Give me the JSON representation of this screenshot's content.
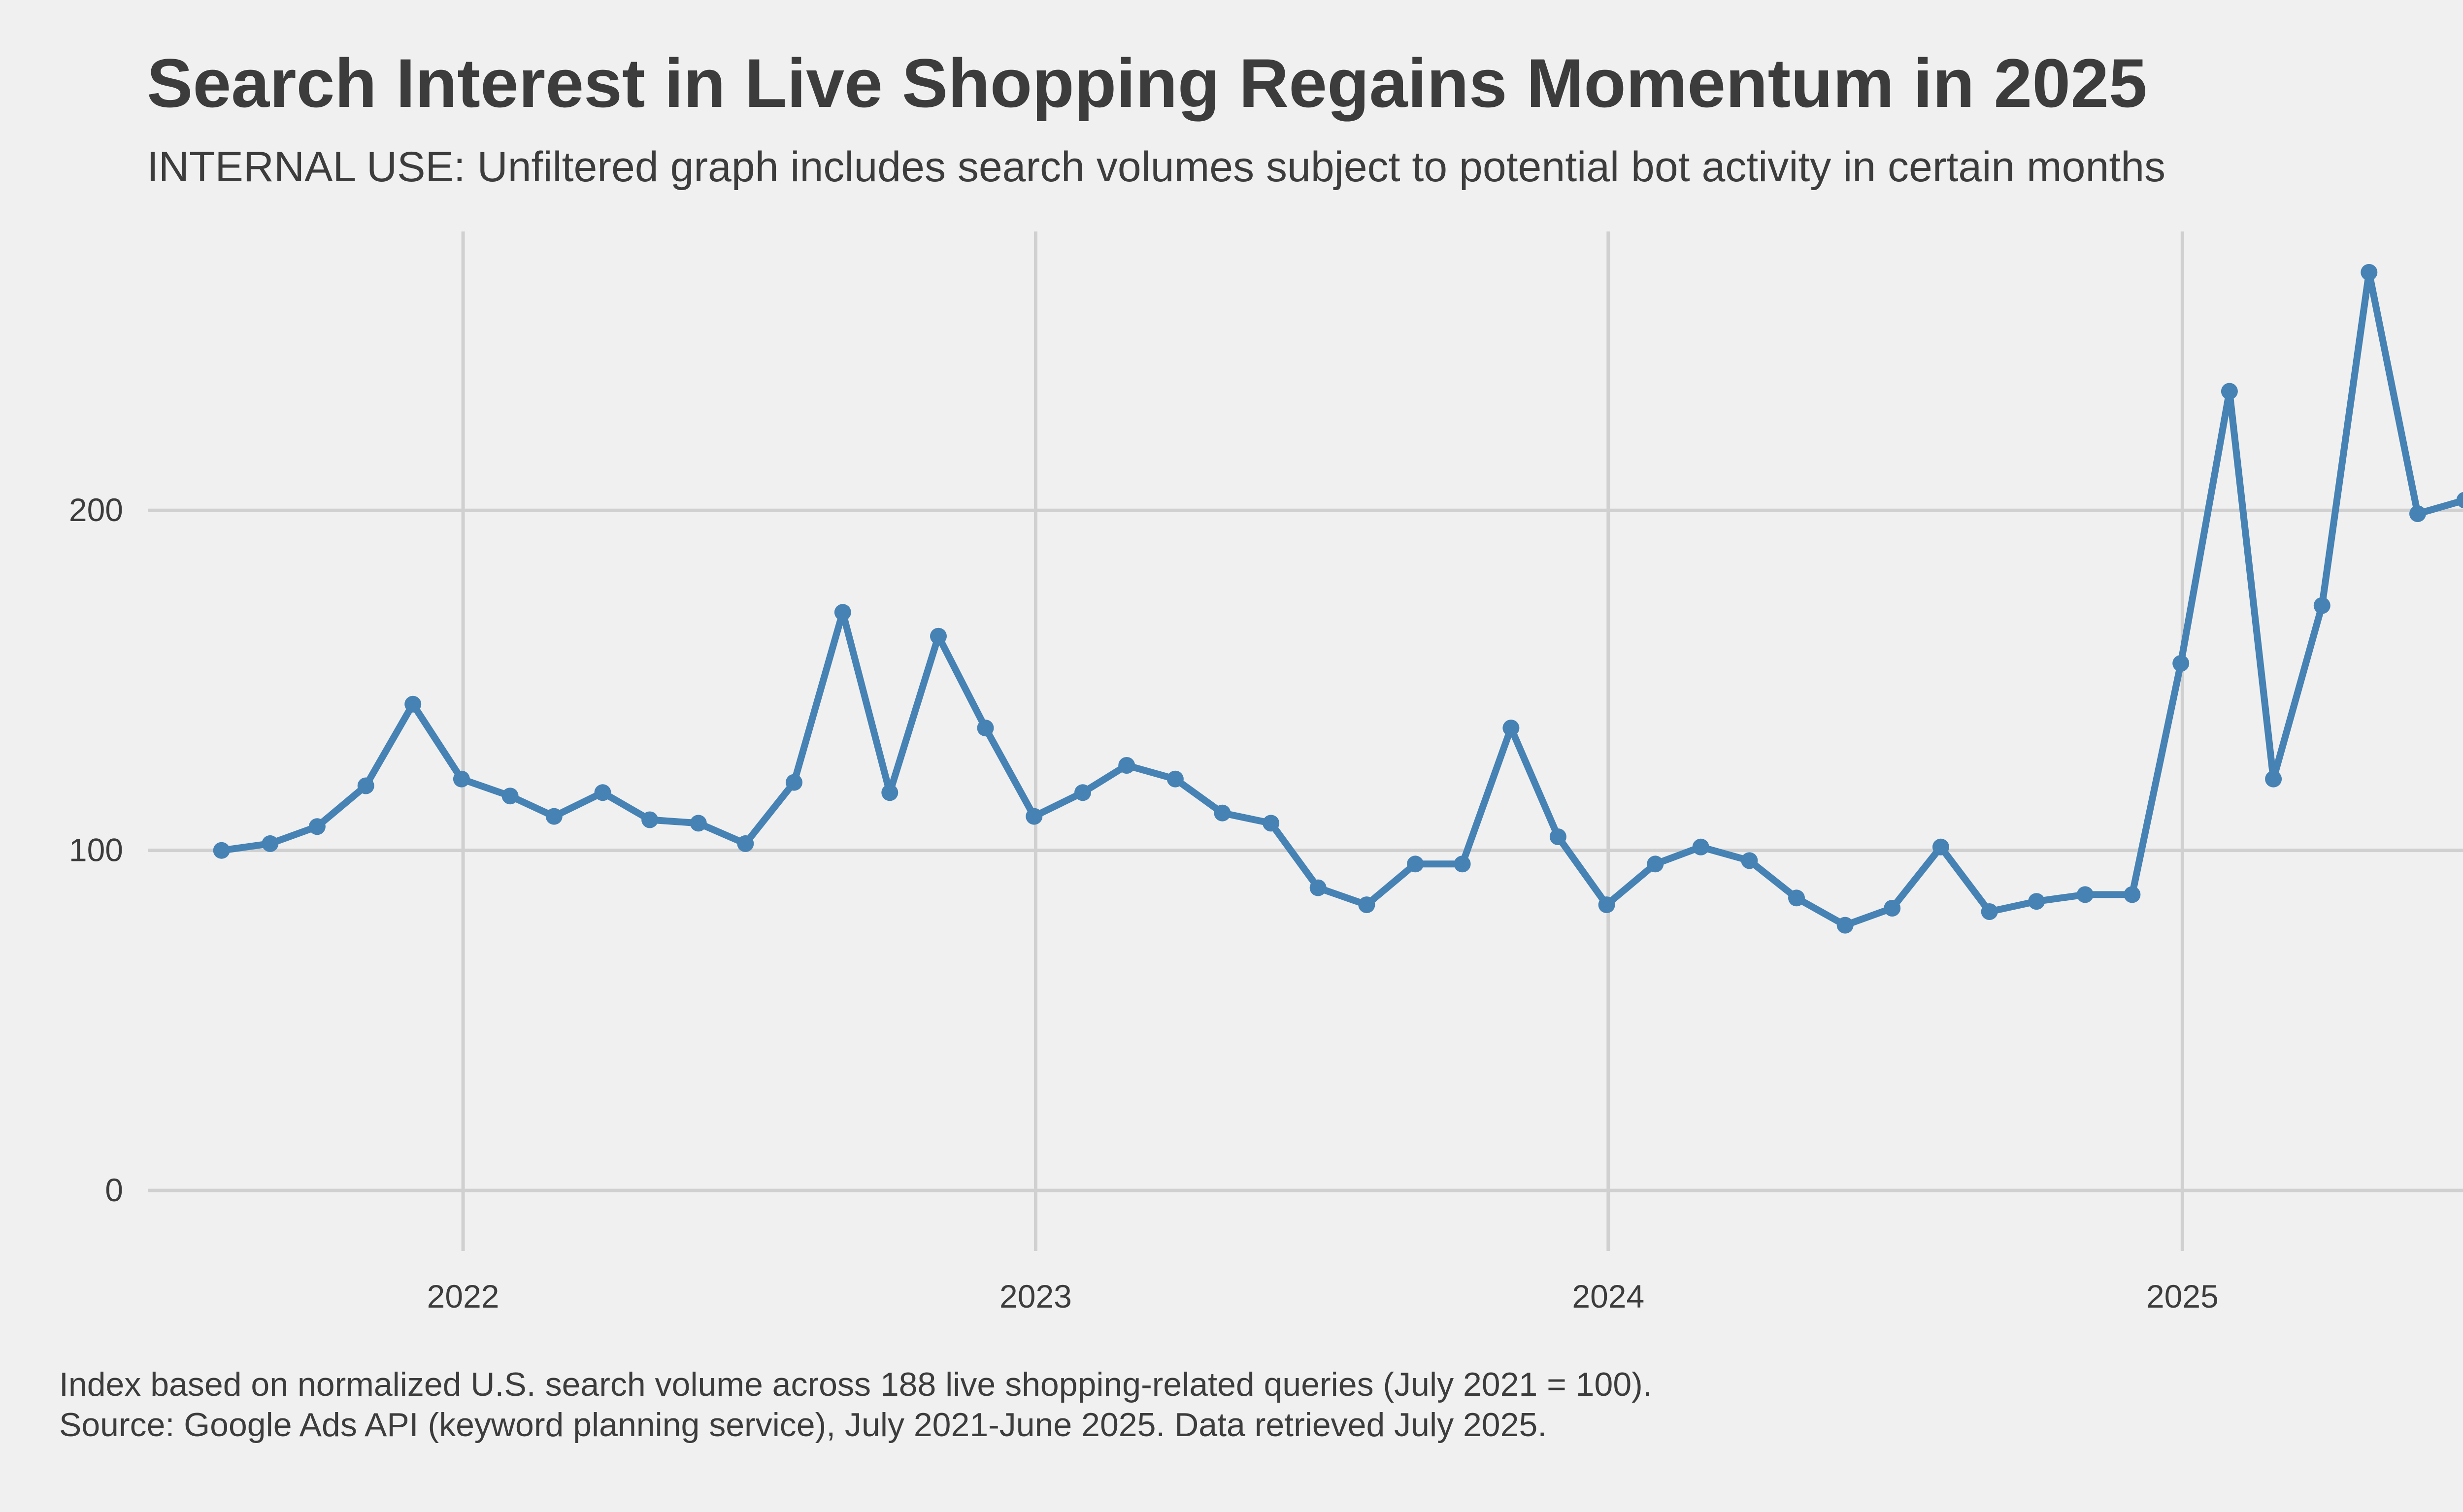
{
  "colors": {
    "background": "#f0f0f0",
    "line": "#4682b4",
    "grid": "#d0d0d0",
    "text": "#3c3c3c"
  },
  "chart_data": {
    "type": "line",
    "title": "Search Interest in Live Shopping Regains Momentum in 2025",
    "subtitle": "INTERNAL USE: Unfiltered graph includes search volumes subject to potential bot activity in certain months",
    "xlabel": "",
    "ylabel": "",
    "x_ticks": [
      "2022",
      "2023",
      "2024",
      "2025"
    ],
    "y_ticks": [
      0,
      100,
      200
    ],
    "xlim": [
      "2021-06-14",
      "2025-07-24"
    ],
    "ylim": [
      -12,
      282
    ],
    "grid": true,
    "legend": "none",
    "series": [
      {
        "x": [
          "2021-07-31",
          "2021-08-31",
          "2021-09-30",
          "2021-10-31",
          "2021-11-30",
          "2021-12-31",
          "2022-01-31",
          "2022-02-28",
          "2022-03-31",
          "2022-04-30",
          "2022-05-31",
          "2022-06-30",
          "2022-07-31",
          "2022-08-31",
          "2022-09-30",
          "2022-10-31",
          "2022-11-30",
          "2022-12-31",
          "2023-01-31",
          "2023-02-28",
          "2023-03-31",
          "2023-04-30",
          "2023-05-31",
          "2023-06-30",
          "2023-07-31",
          "2023-08-31",
          "2023-09-30",
          "2023-10-31",
          "2023-11-30",
          "2023-12-31",
          "2024-01-31",
          "2024-02-29",
          "2024-03-31",
          "2024-04-30",
          "2024-05-31",
          "2024-06-30",
          "2024-07-31",
          "2024-08-31",
          "2024-09-30",
          "2024-10-31",
          "2024-11-30",
          "2024-12-31",
          "2025-01-31",
          "2025-02-28",
          "2025-03-31",
          "2025-04-30",
          "2025-05-31",
          "2025-06-30"
        ],
        "values": [
          100,
          102,
          107,
          119,
          143,
          121,
          116,
          110,
          117,
          109,
          108,
          102,
          120,
          170,
          117,
          163,
          136,
          110,
          117,
          125,
          121,
          111,
          108,
          89,
          84,
          96,
          96,
          136,
          104,
          84,
          96,
          101,
          97,
          86,
          78,
          83,
          101,
          82,
          85,
          87,
          87,
          155,
          235,
          121,
          172,
          270,
          199,
          203
        ]
      }
    ]
  },
  "footnote": {
    "line1": "Index based on normalized U.S. search volume across 188 live shopping-related queries (July 2021 = 100).",
    "line2": "Source: Google Ads API (keyword planning service), July 2021-June 2025. Data retrieved July 2025."
  }
}
